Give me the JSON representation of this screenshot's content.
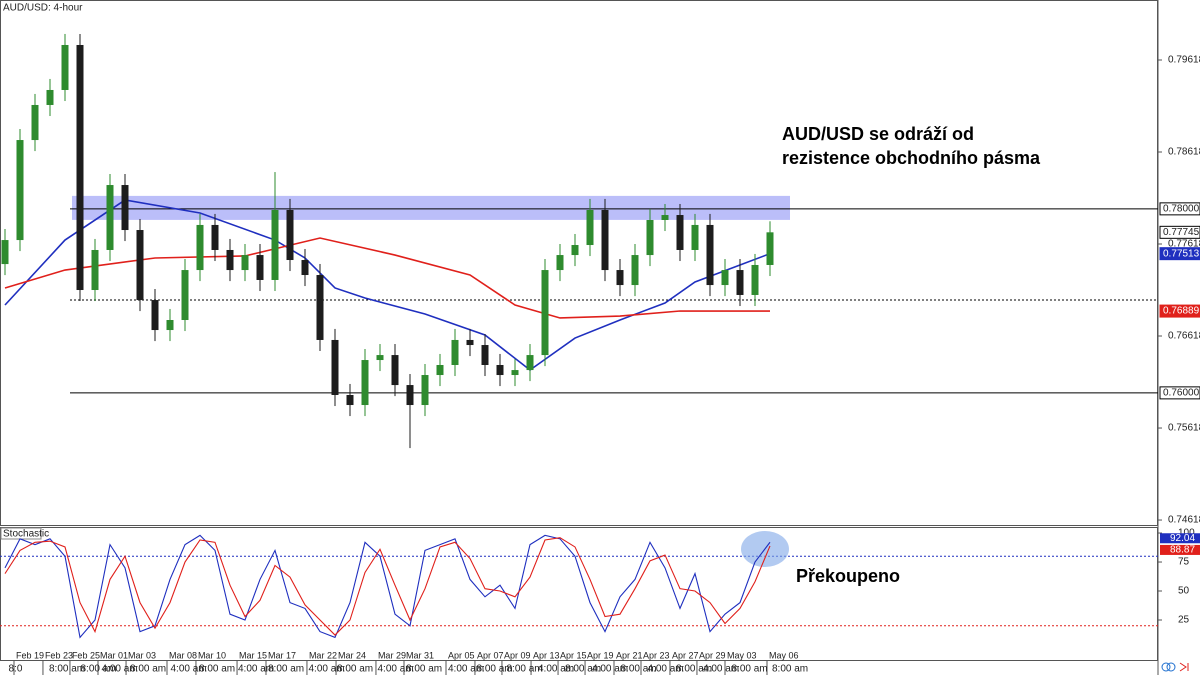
{
  "chart_data": [
    {
      "type": "candlestick",
      "title": "AUD/USD: 4-hour",
      "up_color": "#2e8b2e",
      "down_color": "#1d1d1d",
      "xlim": [
        -0.3333,
        76.8667
      ],
      "ylim": [
        0.74564,
        0.8027
      ],
      "yticks": [
        0.79618,
        0.78618,
        0.77618,
        0.76618,
        0.75618,
        0.74618
      ],
      "candles": [
        [
          0.774,
          0.77781,
          0.7728,
          0.77661
        ],
        [
          0.77661,
          0.78868,
          0.77541,
          0.78748
        ],
        [
          0.78748,
          0.79249,
          0.78628,
          0.79129
        ],
        [
          0.79129,
          0.79412,
          0.79009,
          0.79292
        ],
        [
          0.79292,
          0.79901,
          0.79172,
          0.79781
        ],
        [
          0.79781,
          0.79901,
          0.76998,
          0.77118
        ],
        [
          0.77118,
          0.77673,
          0.76998,
          0.77553
        ],
        [
          0.77553,
          0.78379,
          0.77433,
          0.78259
        ],
        [
          0.78259,
          0.78379,
          0.7765,
          0.7777
        ],
        [
          0.7777,
          0.7789,
          0.76889,
          0.77009
        ],
        [
          0.77009,
          0.77129,
          0.76563,
          0.76683
        ],
        [
          0.76683,
          0.76912,
          0.76563,
          0.76792
        ],
        [
          0.76792,
          0.77455,
          0.76672,
          0.77335
        ],
        [
          0.77335,
          0.77945,
          0.77215,
          0.77825
        ],
        [
          0.77825,
          0.77945,
          0.77433,
          0.77553
        ],
        [
          0.77553,
          0.77673,
          0.77215,
          0.77335
        ],
        [
          0.77335,
          0.77618,
          0.77215,
          0.77498
        ],
        [
          0.77498,
          0.77618,
          0.77107,
          0.77227
        ],
        [
          0.77227,
          0.784,
          0.77107,
          0.77988
        ],
        [
          0.77988,
          0.78108,
          0.77324,
          0.77444
        ],
        [
          0.77444,
          0.77564,
          0.77161,
          0.77281
        ],
        [
          0.77281,
          0.77401,
          0.76455,
          0.76575
        ],
        [
          0.76575,
          0.76695,
          0.75857,
          0.75977
        ],
        [
          0.75977,
          0.76097,
          0.75748,
          0.75868
        ],
        [
          0.75868,
          0.76477,
          0.75748,
          0.76357
        ],
        [
          0.76357,
          0.76531,
          0.76237,
          0.76411
        ],
        [
          0.76411,
          0.76531,
          0.75965,
          0.76085
        ],
        [
          0.76085,
          0.76205,
          0.754,
          0.75868
        ],
        [
          0.75868,
          0.76314,
          0.75748,
          0.76194
        ],
        [
          0.76194,
          0.76423,
          0.76074,
          0.76303
        ],
        [
          0.76303,
          0.76695,
          0.76183,
          0.76575
        ],
        [
          0.76575,
          0.76695,
          0.764,
          0.7652
        ],
        [
          0.7652,
          0.7664,
          0.76183,
          0.76303
        ],
        [
          0.76303,
          0.76423,
          0.76074,
          0.76194
        ],
        [
          0.76194,
          0.76368,
          0.76074,
          0.76248
        ],
        [
          0.76248,
          0.76531,
          0.76128,
          0.76411
        ],
        [
          0.76411,
          0.77455,
          0.76291,
          0.77335
        ],
        [
          0.77335,
          0.77618,
          0.77215,
          0.77498
        ],
        [
          0.77498,
          0.77727,
          0.77378,
          0.77607
        ],
        [
          0.77607,
          0.78108,
          0.77487,
          0.77988
        ],
        [
          0.77988,
          0.78108,
          0.77215,
          0.77335
        ],
        [
          0.77335,
          0.77455,
          0.77052,
          0.77172
        ],
        [
          0.77172,
          0.77618,
          0.77052,
          0.77498
        ],
        [
          0.77498,
          0.77999,
          0.77378,
          0.77879
        ],
        [
          0.77879,
          0.78053,
          0.77759,
          0.77933
        ],
        [
          0.77933,
          0.78053,
          0.77433,
          0.77553
        ],
        [
          0.77553,
          0.77945,
          0.77433,
          0.77825
        ],
        [
          0.77825,
          0.77945,
          0.77052,
          0.77172
        ],
        [
          0.77172,
          0.77455,
          0.77052,
          0.77335
        ],
        [
          0.77335,
          0.77455,
          0.76944,
          0.77064
        ],
        [
          0.77064,
          0.7751,
          0.76944,
          0.7739
        ],
        [
          0.7739,
          0.77865,
          0.7727,
          0.77745
        ]
      ],
      "series": [
        {
          "color": "#1f2fbf",
          "x": [
            0,
            4,
            8,
            13,
            18,
            20,
            22,
            24,
            28,
            32,
            35,
            38,
            41,
            44,
            46,
            49,
            51
          ],
          "values": [
            0.76955,
            0.77661,
            0.78096,
            0.77955,
            0.77661,
            0.77466,
            0.7714,
            0.77031,
            0.76857,
            0.76629,
            0.76248,
            0.76596,
            0.76792,
            0.76977,
            0.77205,
            0.7739,
            0.77513
          ]
        },
        {
          "color": "#e0201b",
          "x": [
            0,
            4,
            10,
            16,
            21,
            26,
            31,
            34,
            37,
            41,
            45,
            51
          ],
          "values": [
            0.7714,
            0.77335,
            0.77466,
            0.77488,
            0.77683,
            0.77498,
            0.77281,
            0.76955,
            0.76814,
            0.76835,
            0.7689,
            0.76889
          ]
        }
      ],
      "zone": [
        0.7788,
        0.78141
      ],
      "zone_color": "#8e92f5",
      "levels": [
        {
          "value": 0.78,
          "label": "0.78000",
          "style": "solid"
        },
        {
          "value": 0.76,
          "label": "0.76000",
          "style": "solid"
        },
        {
          "value": 0.77009,
          "style": "dotted"
        }
      ],
      "price_tags": [
        {
          "value": 0.77745,
          "label": "0.77745",
          "color": "#ffffff"
        },
        {
          "value": 0.77513,
          "label": "0.77513",
          "color": "#1f2fbf"
        },
        {
          "value": 0.76889,
          "label": "0.76889",
          "color": "#e0201b"
        }
      ],
      "annotations": [
        "AUD/USD se odráží od",
        "rezistence obchodního pásma"
      ]
    },
    {
      "type": "line",
      "title": "Stochastic",
      "xlim": [
        -0.3333,
        76.8667
      ],
      "ylim": [
        -9.5,
        105.2
      ],
      "yticks": [
        100,
        75,
        50,
        25
      ],
      "levels": [
        80,
        20
      ],
      "series": [
        {
          "color": "#1f2fbf",
          "values": [
            70,
            95,
            90,
            95,
            80,
            10,
            25,
            90,
            70,
            15,
            20,
            60,
            90,
            98,
            85,
            30,
            25,
            60,
            85,
            40,
            35,
            15,
            10,
            40,
            92,
            80,
            30,
            20,
            85,
            90,
            95,
            60,
            45,
            55,
            35,
            90,
            98,
            95,
            80,
            40,
            15,
            45,
            60,
            92,
            70,
            35,
            65,
            15,
            30,
            40,
            75,
            92.04
          ]
        },
        {
          "color": "#e0201b",
          "values": [
            65,
            85,
            92,
            93,
            88,
            40,
            15,
            60,
            80,
            40,
            18,
            40,
            75,
            94,
            92,
            55,
            28,
            42,
            72,
            62,
            38,
            25,
            12,
            25,
            66,
            86,
            55,
            25,
            52,
            88,
            92,
            78,
            52,
            50,
            45,
            62,
            94,
            96,
            88,
            60,
            28,
            30,
            52,
            76,
            81,
            52,
            50,
            40,
            22,
            35,
            58,
            88.87
          ]
        }
      ],
      "annotations": [
        "Překoupeno"
      ],
      "xticks": [
        {
          "value": 0.6,
          "label": "Feb 19"
        },
        {
          "value": 2.53,
          "label": "Feb 23"
        },
        {
          "value": 4.33,
          "label": "Feb 25"
        },
        {
          "value": 6.2,
          "label": "Mar 01"
        },
        {
          "value": 8.07,
          "label": "Mar 03"
        },
        {
          "value": 10.8,
          "label": "Mar 08"
        },
        {
          "value": 12.73,
          "label": "Mar 10"
        },
        {
          "value": 15.47,
          "label": "Mar 15"
        },
        {
          "value": 17.4,
          "label": "Mar 17"
        },
        {
          "value": 20.13,
          "label": "Mar 22"
        },
        {
          "value": 22.07,
          "label": "Mar 24"
        },
        {
          "value": 24.73,
          "label": "Mar 29"
        },
        {
          "value": 26.6,
          "label": "Mar 31"
        },
        {
          "value": 29.4,
          "label": "Apr 05"
        },
        {
          "value": 31.33,
          "label": "Apr 07"
        },
        {
          "value": 33.13,
          "label": "Apr 09"
        },
        {
          "value": 35.07,
          "label": "Apr 13"
        },
        {
          "value": 36.87,
          "label": "Apr 15"
        },
        {
          "value": 38.67,
          "label": "Apr 19"
        },
        {
          "value": 40.6,
          "label": "Apr 21"
        },
        {
          "value": 42.4,
          "label": "Apr 23"
        },
        {
          "value": 44.33,
          "label": "Apr 27"
        },
        {
          "value": 46.13,
          "label": "Apr 29"
        },
        {
          "value": 48,
          "label": "May 03"
        },
        {
          "value": 50.8,
          "label": "May 06"
        }
      ],
      "time_ticks": [
        {
          "value": 0.1,
          "label": "8:0"
        },
        {
          "value": 2.8,
          "label": "8:00 am"
        },
        {
          "value": 4.9,
          "label": "8:00 am"
        },
        {
          "value": 6.3,
          "label": "4:00 am"
        },
        {
          "value": 8.2,
          "label": "8:00 am"
        },
        {
          "value": 10.9,
          "label": "4:00 am"
        },
        {
          "value": 12.8,
          "label": "8:00 am"
        },
        {
          "value": 15.4,
          "label": "4:00 am"
        },
        {
          "value": 17.4,
          "label": "8:00 am"
        },
        {
          "value": 20.1,
          "label": "4:00 am"
        },
        {
          "value": 22.0,
          "label": "8:00 am"
        },
        {
          "value": 24.7,
          "label": "4:00 am"
        },
        {
          "value": 26.6,
          "label": "8:00 am"
        },
        {
          "value": 29.4,
          "label": "4:00 am"
        },
        {
          "value": 31.3,
          "label": "8:00 am"
        },
        {
          "value": 33.3,
          "label": "8:00 am"
        },
        {
          "value": 35.4,
          "label": "4:00 am"
        },
        {
          "value": 37.2,
          "label": "8:00 am"
        },
        {
          "value": 39.0,
          "label": "4:00 am"
        },
        {
          "value": 40.9,
          "label": "8:00 am"
        },
        {
          "value": 42.7,
          "label": "4:00 am"
        },
        {
          "value": 44.6,
          "label": "8:00 am"
        },
        {
          "value": 46.4,
          "label": "4:00 am"
        },
        {
          "value": 48.3,
          "label": "8:00 am"
        },
        {
          "value": 51.0,
          "label": "8:00 am"
        }
      ]
    }
  ]
}
